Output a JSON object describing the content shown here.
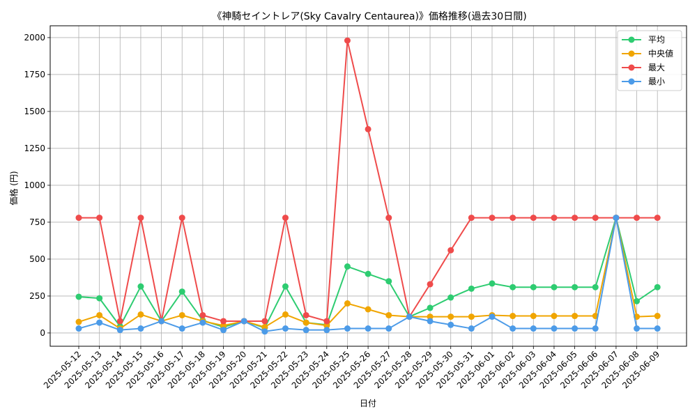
{
  "chart_data": {
    "type": "line",
    "title": "《神騎セイントレア(Sky Cavalry Centaurea)》価格推移(過去30日間)",
    "xlabel": "日付",
    "ylabel": "価格 (円)",
    "ylim": [
      -90,
      2080
    ],
    "yticks": [
      0,
      250,
      500,
      750,
      1000,
      1250,
      1500,
      1750,
      2000
    ],
    "grid": true,
    "legend_position": "top-right",
    "categories": [
      "2025-05-12",
      "2025-05-13",
      "2025-05-14",
      "2025-05-15",
      "2025-05-16",
      "2025-05-17",
      "2025-05-18",
      "2025-05-19",
      "2025-05-20",
      "2025-05-21",
      "2025-05-22",
      "2025-05-23",
      "2025-05-24",
      "2025-05-25",
      "2025-05-26",
      "2025-05-27",
      "2025-05-28",
      "2025-05-29",
      "2025-05-30",
      "2025-05-31",
      "2025-06-01",
      "2025-06-02",
      "2025-06-03",
      "2025-06-04",
      "2025-06-05",
      "2025-06-06",
      "2025-06-07",
      "2025-06-08",
      "2025-06-09"
    ],
    "series": [
      {
        "name": "平均",
        "color": "#2ecc71",
        "values": [
          245,
          235,
          45,
          315,
          80,
          280,
          85,
          40,
          80,
          35,
          315,
          70,
          55,
          450,
          400,
          350,
          110,
          170,
          240,
          300,
          335,
          310,
          310,
          310,
          310,
          310,
          780,
          215,
          310
        ]
      },
      {
        "name": "中央値",
        "color": "#f0a500",
        "values": [
          75,
          120,
          30,
          125,
          80,
          120,
          80,
          50,
          80,
          40,
          125,
          70,
          50,
          200,
          160,
          120,
          110,
          110,
          110,
          110,
          120,
          115,
          115,
          115,
          115,
          115,
          780,
          110,
          115
        ]
      },
      {
        "name": "最大",
        "color": "#ef4b4b",
        "values": [
          780,
          780,
          80,
          780,
          80,
          780,
          120,
          80,
          80,
          80,
          780,
          120,
          80,
          1980,
          1380,
          780,
          110,
          330,
          560,
          780,
          780,
          780,
          780,
          780,
          780,
          780,
          780,
          780,
          780
        ]
      },
      {
        "name": "最小",
        "color": "#4c9be8",
        "values": [
          30,
          70,
          20,
          30,
          80,
          30,
          70,
          20,
          80,
          10,
          30,
          20,
          20,
          30,
          30,
          30,
          110,
          80,
          55,
          30,
          110,
          30,
          30,
          30,
          30,
          30,
          780,
          30,
          30
        ]
      }
    ]
  }
}
